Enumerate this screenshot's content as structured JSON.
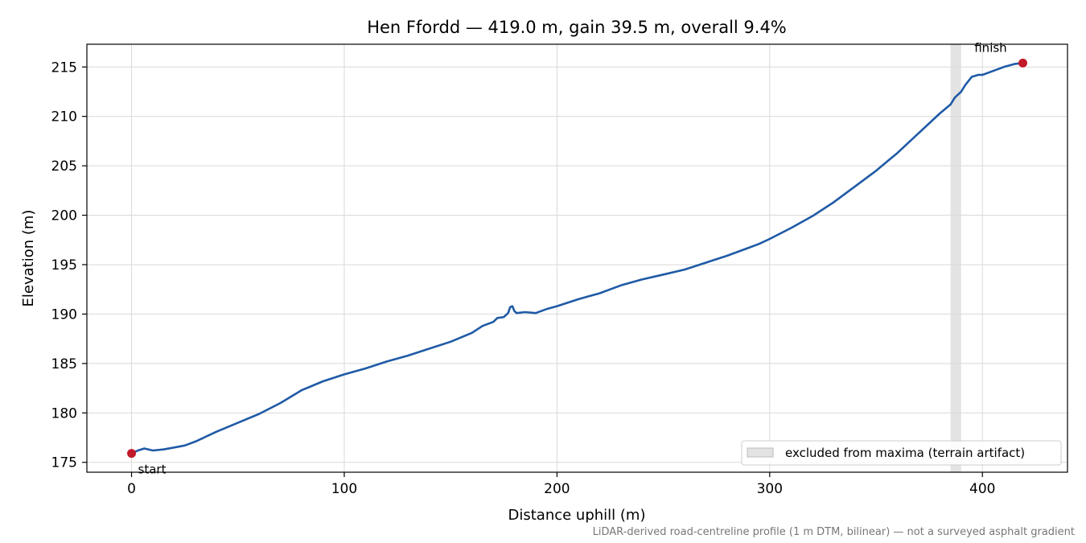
{
  "chart_data": {
    "type": "line",
    "title": "Hen Ffordd — 419.0 m, gain 39.5 m, overall 9.4%",
    "xlabel": "Distance uphill (m)",
    "ylabel": "Elevation (m)",
    "xlim": [
      -21,
      440
    ],
    "ylim": [
      174,
      217.3
    ],
    "xticks": [
      0,
      100,
      200,
      300,
      400
    ],
    "yticks": [
      175,
      180,
      185,
      190,
      195,
      200,
      205,
      210,
      215
    ],
    "xtick_labels": [
      "0",
      "100",
      "200",
      "300",
      "400"
    ],
    "ytick_labels": [
      "175",
      "180",
      "185",
      "190",
      "195",
      "200",
      "205",
      "210",
      "215"
    ],
    "grid": true,
    "series": [
      {
        "color": "#1f5aa6",
        "x": [
          0,
          3,
          6,
          10,
          15,
          20,
          25,
          30,
          40,
          50,
          60,
          70,
          80,
          90,
          100,
          110,
          120,
          130,
          140,
          150,
          160,
          165,
          170,
          172,
          175,
          177,
          178,
          179,
          180,
          181,
          185,
          190,
          195,
          200,
          210,
          215,
          220,
          225,
          230,
          240,
          250,
          260,
          270,
          280,
          290,
          295,
          300,
          310,
          320,
          330,
          340,
          350,
          355,
          360,
          370,
          380,
          385,
          387,
          390,
          392,
          395,
          398,
          400,
          405,
          410,
          415,
          419
        ],
        "y": [
          175.9,
          176.2,
          176.4,
          176.2,
          176.3,
          176.5,
          176.7,
          177.1,
          178.1,
          179.0,
          179.9,
          181.0,
          182.3,
          183.2,
          183.9,
          184.5,
          185.2,
          185.8,
          186.5,
          187.2,
          188.1,
          188.8,
          189.2,
          189.6,
          189.7,
          190.1,
          190.7,
          190.8,
          190.3,
          190.1,
          190.2,
          190.1,
          190.5,
          190.8,
          191.5,
          191.8,
          192.1,
          192.5,
          192.9,
          193.5,
          194.0,
          194.5,
          195.2,
          195.9,
          196.7,
          197.1,
          197.6,
          198.7,
          199.9,
          201.3,
          202.9,
          204.5,
          205.4,
          206.3,
          208.3,
          210.3,
          211.2,
          211.9,
          212.5,
          213.2,
          214.0,
          214.2,
          214.2,
          214.6,
          215.0,
          215.3,
          215.4
        ]
      }
    ],
    "excluded_band": {
      "x_start": 385,
      "x_end": 390,
      "color": "#d9d9d9"
    },
    "markers": [
      {
        "x": 0,
        "y": 175.9,
        "label": "start",
        "color": "#c11a2a"
      },
      {
        "x": 419,
        "y": 215.4,
        "label": "finish",
        "color": "#c11a2a"
      }
    ],
    "legend": {
      "position": "bottom-right",
      "entries": [
        {
          "label": "excluded from maxima (terrain artifact)",
          "type": "band"
        }
      ]
    },
    "footnote": "LiDAR-derived road-centreline profile (1 m DTM, bilinear) — not a surveyed asphalt gradient"
  }
}
